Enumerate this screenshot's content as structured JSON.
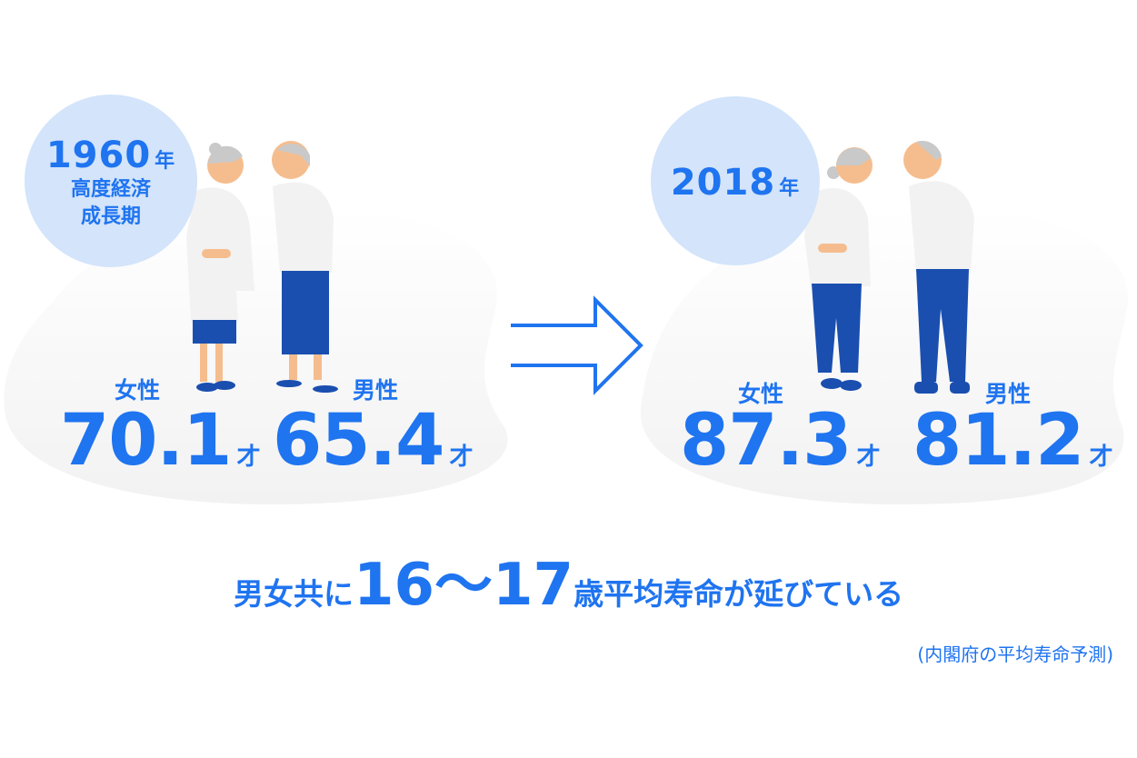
{
  "left": {
    "year": "1960",
    "year_suffix": "年",
    "era_line1": "高度経済",
    "era_line2": "成長期",
    "female_label": "女性",
    "female_age": "70.1",
    "male_label": "男性",
    "male_age": "65.4",
    "age_unit": "才"
  },
  "right": {
    "year": "2018",
    "year_suffix": "年",
    "female_label": "女性",
    "female_age": "87.3",
    "male_label": "男性",
    "male_age": "81.2",
    "age_unit": "才"
  },
  "headline": {
    "prefix": "男女共に",
    "range": "16〜17",
    "suffix": "歳平均寿命が延びている"
  },
  "source_note": "(内閣府の平均寿命予測)",
  "colors": {
    "accent": "#1f74f0",
    "circle": "#d3e4fb",
    "pants": "#1a4fb0",
    "skin": "#f5bd8e",
    "hair": "#c9c9c9"
  }
}
